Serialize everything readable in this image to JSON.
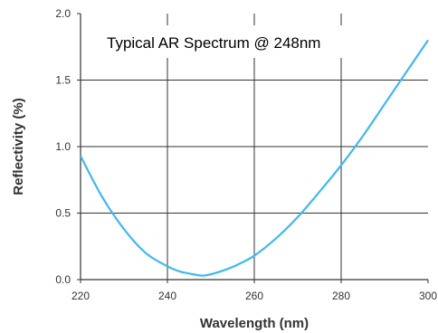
{
  "chart_data": {
    "type": "line",
    "title": "Typical AR Spectrum @ 248nm",
    "xlabel": "Wavelength (nm)",
    "ylabel": "Reflectivity (%)",
    "xlim": [
      220,
      300
    ],
    "ylim": [
      0.0,
      2.0
    ],
    "x_ticks": [
      "220",
      "240",
      "260",
      "280",
      "300"
    ],
    "y_ticks": [
      "0.0",
      "0.5",
      "1.0",
      "1.5",
      "2.0"
    ],
    "grid": true,
    "line_color": "#3fb8f0",
    "series": [
      {
        "x": [
          220,
          225,
          230,
          235,
          240,
          243,
          246,
          248,
          250,
          253,
          256,
          260,
          265,
          270,
          275,
          280,
          285,
          290,
          295,
          300
        ],
        "y": [
          0.93,
          0.62,
          0.38,
          0.2,
          0.1,
          0.06,
          0.04,
          0.03,
          0.04,
          0.07,
          0.11,
          0.18,
          0.31,
          0.47,
          0.66,
          0.86,
          1.08,
          1.32,
          1.56,
          1.8
        ]
      }
    ]
  }
}
